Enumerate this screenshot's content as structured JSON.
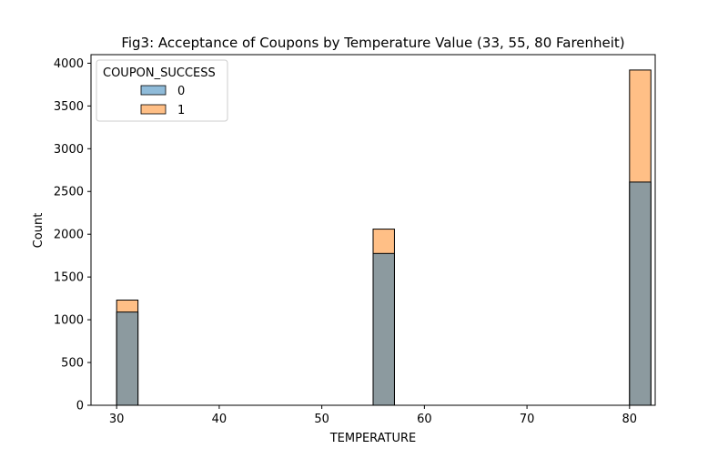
{
  "chart_data": {
    "type": "bar",
    "title": "Fig3: Acceptance of Coupons by Temperature Value (33, 55, 80 Farenheit)",
    "xlabel": "TEMPERATURE",
    "ylabel": "Count",
    "xlim": [
      27.5,
      82.5
    ],
    "ylim": [
      0,
      4100
    ],
    "xticks": [
      30,
      40,
      50,
      60,
      70,
      80
    ],
    "yticks": [
      0,
      500,
      1000,
      1500,
      2000,
      2500,
      3000,
      3500,
      4000
    ],
    "bin_width": 2.08,
    "grid": false,
    "legend": {
      "title": "COUPON_SUCCESS",
      "position": "top-left",
      "entries": [
        "0",
        "1"
      ]
    },
    "categories": [
      30,
      55,
      80
    ],
    "series": [
      {
        "name": "0",
        "color": "#1f77b4",
        "values": [
          1090,
          1775,
          2610
        ]
      },
      {
        "name": "1",
        "color": "#ff7f0e",
        "values": [
          1230,
          2060,
          3920
        ]
      }
    ],
    "overlap_color": "#8c9a9f"
  }
}
